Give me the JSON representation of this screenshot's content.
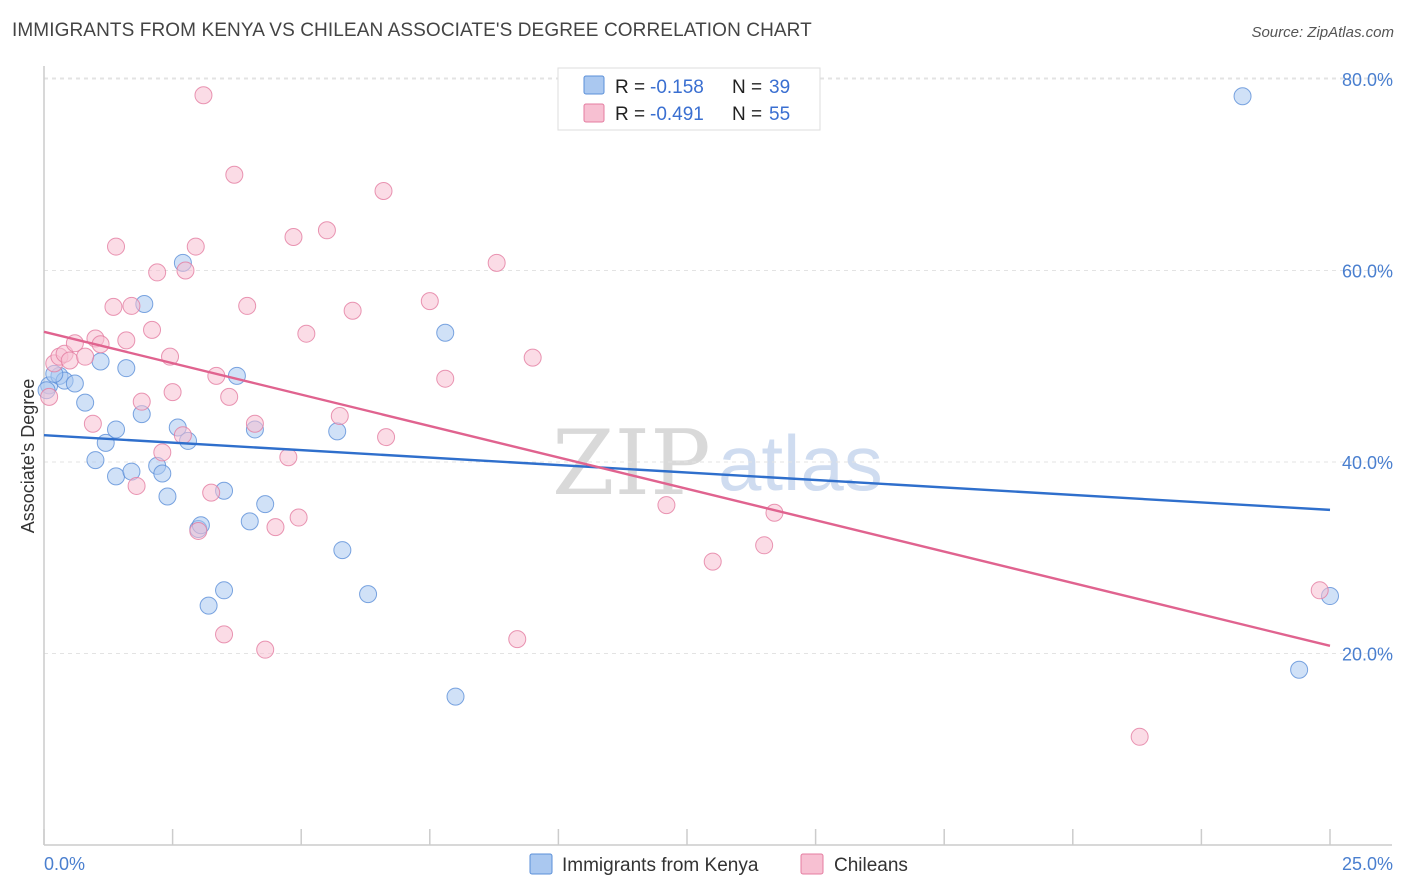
{
  "title": "IMMIGRANTS FROM KENYA VS CHILEAN ASSOCIATE'S DEGREE CORRELATION CHART",
  "source": "Source: ZipAtlas.com",
  "watermark": {
    "zip": "ZIP",
    "atlas": "atlas"
  },
  "legend": {
    "r_label": "R =",
    "n_label": "N =",
    "rows": [
      {
        "r": "-0.158",
        "n": "39",
        "color": "#aac8f0",
        "stroke": "#5b8fd8"
      },
      {
        "r": "-0.491",
        "n": "55",
        "color": "#f7c0d2",
        "stroke": "#e47ca0"
      }
    ]
  },
  "bottom_legend": [
    "Immigrants from Kenya",
    "Chileans"
  ],
  "chart_data": {
    "type": "scatter",
    "xlabel": "",
    "ylabel": "Associate's Degree",
    "xlim": [
      0,
      25
    ],
    "ylim": [
      0,
      82
    ],
    "x_tick_labels": [
      "0.0%",
      "25.0%"
    ],
    "y_ticks": [
      20,
      40,
      60,
      80
    ],
    "y_tick_labels": [
      "20.0%",
      "40.0%",
      "60.0%",
      "80.0%"
    ],
    "series": [
      {
        "name": "Immigrants from Kenya",
        "color": "#aac8f0",
        "stroke": "#5b8fd8",
        "line_color": "#2f6fcc",
        "trend": {
          "x": [
            0,
            25
          ],
          "y": [
            42.8,
            35.0
          ]
        },
        "points": [
          [
            0.1,
            48.0
          ],
          [
            0.3,
            49.0
          ],
          [
            0.4,
            48.5
          ],
          [
            0.6,
            48.2
          ],
          [
            0.8,
            46.2
          ],
          [
            1.1,
            50.5
          ],
          [
            1.0,
            40.2
          ],
          [
            1.2,
            42.0
          ],
          [
            1.4,
            43.4
          ],
          [
            1.4,
            38.5
          ],
          [
            1.6,
            49.8
          ],
          [
            1.7,
            39.0
          ],
          [
            1.9,
            45.0
          ],
          [
            1.95,
            56.5
          ],
          [
            2.2,
            39.6
          ],
          [
            2.3,
            38.8
          ],
          [
            2.4,
            36.4
          ],
          [
            2.6,
            43.6
          ],
          [
            2.7,
            60.8
          ],
          [
            2.8,
            42.2
          ],
          [
            3.0,
            33.0
          ],
          [
            3.05,
            33.4
          ],
          [
            3.2,
            25.0
          ],
          [
            3.5,
            37.0
          ],
          [
            3.5,
            26.6
          ],
          [
            3.75,
            49.0
          ],
          [
            4.0,
            33.8
          ],
          [
            4.1,
            43.4
          ],
          [
            4.3,
            35.6
          ],
          [
            5.7,
            43.2
          ],
          [
            5.8,
            30.8
          ],
          [
            6.3,
            26.2
          ],
          [
            7.8,
            53.5
          ],
          [
            8.0,
            15.5
          ],
          [
            23.3,
            78.2
          ],
          [
            24.4,
            18.3
          ],
          [
            25.0,
            26.0
          ],
          [
            0.05,
            47.5
          ],
          [
            0.2,
            49.2
          ]
        ]
      },
      {
        "name": "Chileans",
        "color": "#f7c0d2",
        "stroke": "#e47ca0",
        "line_color": "#e0638f",
        "trend": {
          "x": [
            0,
            25
          ],
          "y": [
            53.6,
            20.8
          ]
        },
        "points": [
          [
            0.1,
            46.8
          ],
          [
            0.2,
            50.3
          ],
          [
            0.3,
            51.0
          ],
          [
            0.4,
            51.3
          ],
          [
            0.5,
            50.6
          ],
          [
            0.6,
            52.4
          ],
          [
            0.8,
            51.0
          ],
          [
            0.95,
            44.0
          ],
          [
            1.0,
            52.9
          ],
          [
            1.1,
            52.3
          ],
          [
            1.35,
            56.2
          ],
          [
            1.4,
            62.5
          ],
          [
            1.6,
            52.7
          ],
          [
            1.7,
            56.3
          ],
          [
            1.8,
            37.5
          ],
          [
            1.9,
            46.3
          ],
          [
            2.1,
            53.8
          ],
          [
            2.2,
            59.8
          ],
          [
            2.3,
            41.0
          ],
          [
            2.45,
            51.0
          ],
          [
            2.5,
            47.3
          ],
          [
            2.7,
            42.8
          ],
          [
            2.75,
            60.0
          ],
          [
            2.95,
            62.5
          ],
          [
            3.0,
            32.8
          ],
          [
            3.1,
            78.3
          ],
          [
            3.25,
            36.8
          ],
          [
            3.35,
            49.0
          ],
          [
            3.5,
            22.0
          ],
          [
            3.6,
            46.8
          ],
          [
            3.7,
            70.0
          ],
          [
            3.95,
            56.3
          ],
          [
            4.1,
            44.0
          ],
          [
            4.3,
            20.4
          ],
          [
            4.5,
            33.2
          ],
          [
            4.75,
            40.5
          ],
          [
            4.85,
            63.5
          ],
          [
            4.95,
            34.2
          ],
          [
            5.1,
            53.4
          ],
          [
            5.5,
            64.2
          ],
          [
            5.75,
            44.8
          ],
          [
            6.0,
            55.8
          ],
          [
            6.6,
            68.3
          ],
          [
            6.65,
            42.6
          ],
          [
            7.5,
            56.8
          ],
          [
            7.8,
            48.7
          ],
          [
            8.8,
            60.8
          ],
          [
            9.2,
            21.5
          ],
          [
            9.5,
            50.9
          ],
          [
            12.1,
            35.5
          ],
          [
            13.0,
            29.6
          ],
          [
            14.0,
            31.3
          ],
          [
            14.2,
            34.7
          ],
          [
            21.3,
            11.3
          ],
          [
            24.8,
            26.6
          ]
        ]
      }
    ]
  }
}
